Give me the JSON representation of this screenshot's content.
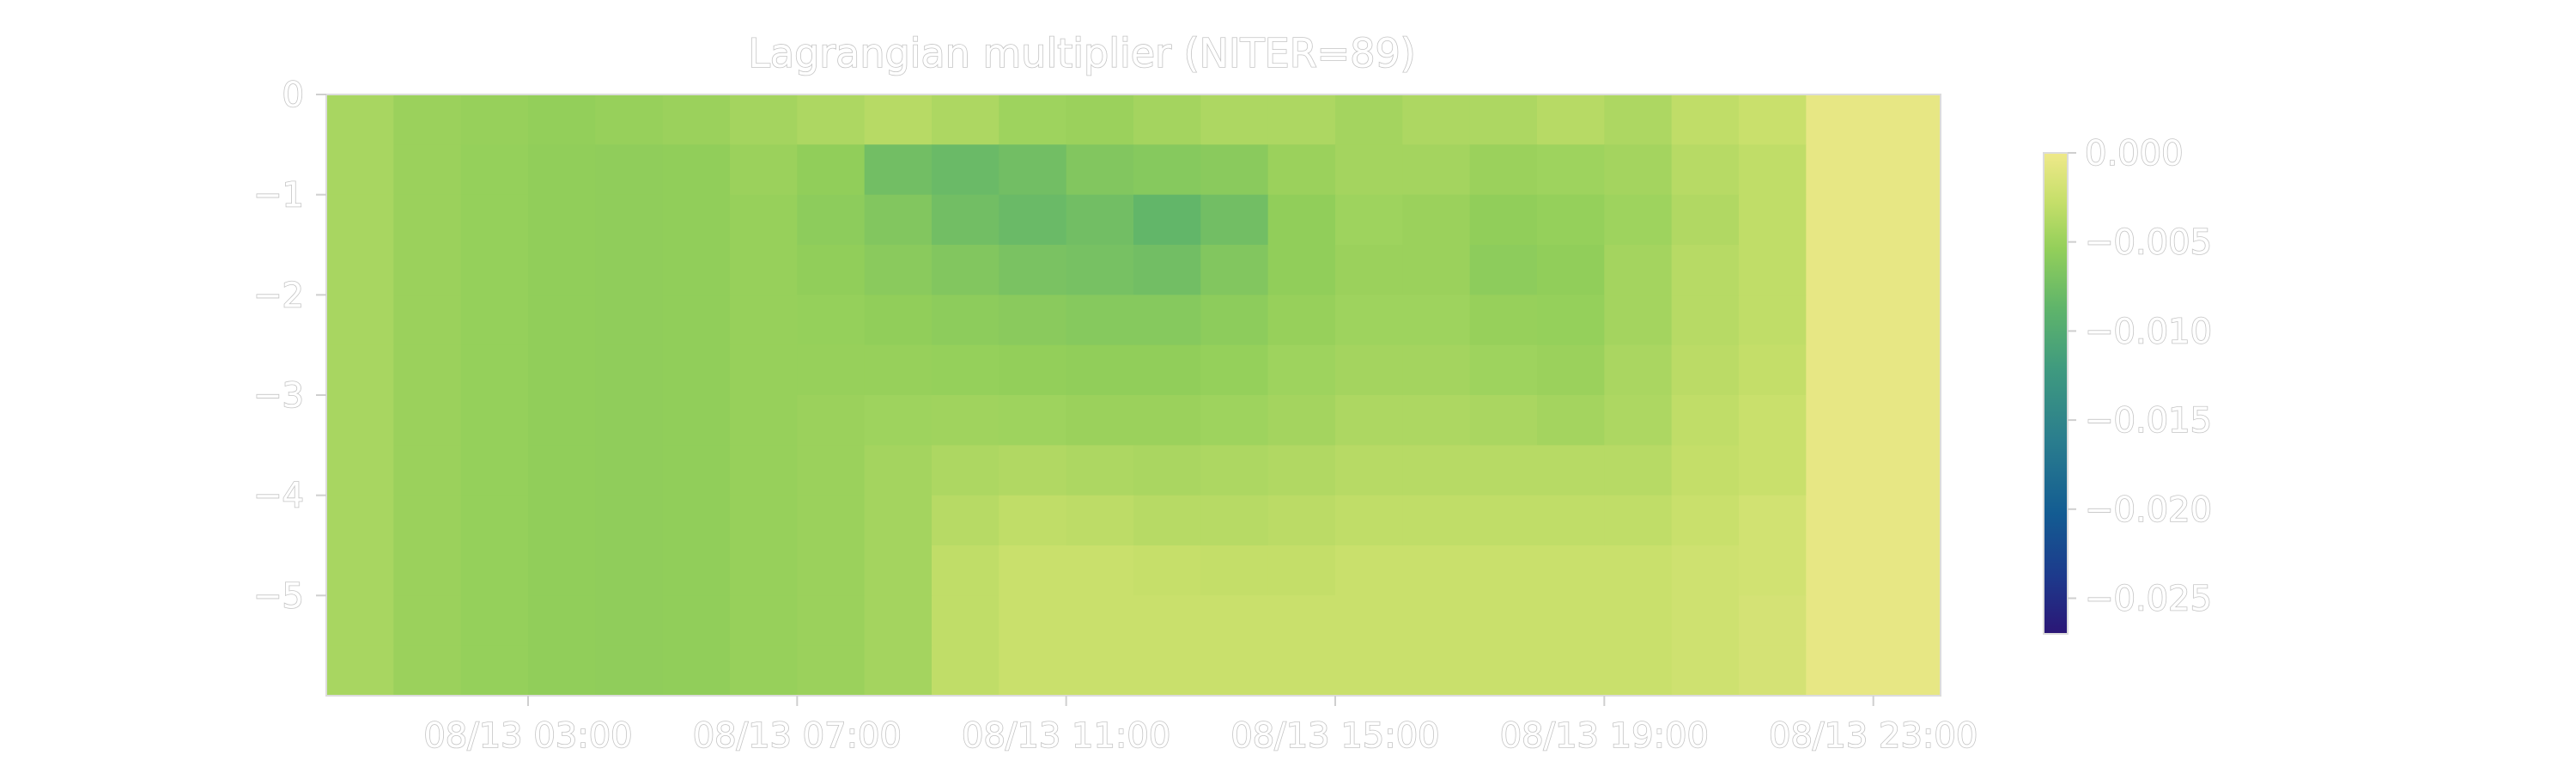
{
  "chart_data": {
    "type": "heatmap",
    "title": "Lagrangian multiplier (NITER=89)",
    "xlabel": "",
    "ylabel": "",
    "x_ticks": [
      "08/13 03:00",
      "08/13 07:00",
      "08/13 11:00",
      "08/13 15:00",
      "08/13 19:00",
      "08/13 23:00"
    ],
    "x_range": [
      "08/13 00:00",
      "08/14 00:00"
    ],
    "y_ticks": [
      "0",
      "−1",
      "−2",
      "−3",
      "−4",
      "−5"
    ],
    "y_tick_values": [
      0,
      -1,
      -2,
      -3,
      -4,
      -5
    ],
    "ylim": [
      -6,
      0
    ],
    "colorbar": {
      "ticks": [
        "0.000",
        "−0.005",
        "−0.010",
        "−0.015",
        "−0.020",
        "−0.025"
      ],
      "tick_values": [
        0,
        -0.005,
        -0.01,
        -0.015,
        -0.02,
        -0.025
      ],
      "range": [
        -0.027,
        0.0
      ],
      "colormap": "yellow-green-blue (haline-like)"
    },
    "grid": false,
    "depth_rows": [
      -0.25,
      -0.75,
      -1.25,
      -1.75,
      -2.25,
      -2.75,
      -3.25,
      -3.75,
      -4.25,
      -4.75,
      -5.25,
      -5.75
    ],
    "values": [
      [
        -0.0043,
        -0.005,
        -0.0052,
        -0.0054,
        -0.0052,
        -0.005,
        -0.0045,
        -0.004,
        -0.0035,
        -0.004,
        -0.0048,
        -0.005,
        -0.0045,
        -0.004,
        -0.004,
        -0.0045,
        -0.004,
        -0.004,
        -0.0035,
        -0.004,
        -0.003,
        -0.0025,
        -0.0005,
        -0.0005
      ],
      [
        -0.0043,
        -0.005,
        -0.0053,
        -0.0055,
        -0.0056,
        -0.0055,
        -0.005,
        -0.0055,
        -0.0075,
        -0.008,
        -0.0075,
        -0.0065,
        -0.0062,
        -0.006,
        -0.005,
        -0.0045,
        -0.0045,
        -0.005,
        -0.0048,
        -0.0045,
        -0.0035,
        -0.003,
        -0.0005,
        -0.0005
      ],
      [
        -0.0043,
        -0.005,
        -0.0053,
        -0.0055,
        -0.0056,
        -0.0055,
        -0.0052,
        -0.0058,
        -0.0065,
        -0.0075,
        -0.008,
        -0.0075,
        -0.0085,
        -0.0075,
        -0.0055,
        -0.0048,
        -0.005,
        -0.0055,
        -0.0053,
        -0.0048,
        -0.0038,
        -0.003,
        -0.0005,
        -0.0005
      ],
      [
        -0.0043,
        -0.005,
        -0.0053,
        -0.0055,
        -0.0056,
        -0.0055,
        -0.0052,
        -0.0055,
        -0.006,
        -0.0065,
        -0.007,
        -0.0072,
        -0.0075,
        -0.0065,
        -0.0055,
        -0.005,
        -0.005,
        -0.0058,
        -0.0055,
        -0.0045,
        -0.0035,
        -0.003,
        -0.0005,
        -0.0005
      ],
      [
        -0.0043,
        -0.005,
        -0.0053,
        -0.0055,
        -0.0056,
        -0.0055,
        -0.0052,
        -0.0053,
        -0.0055,
        -0.0058,
        -0.006,
        -0.0062,
        -0.0062,
        -0.0058,
        -0.0052,
        -0.0048,
        -0.0048,
        -0.0052,
        -0.0053,
        -0.0045,
        -0.0035,
        -0.003,
        -0.0005,
        -0.0005
      ],
      [
        -0.0043,
        -0.005,
        -0.0053,
        -0.0055,
        -0.0056,
        -0.0055,
        -0.0052,
        -0.0052,
        -0.0052,
        -0.0053,
        -0.0054,
        -0.0055,
        -0.0055,
        -0.0053,
        -0.0048,
        -0.0045,
        -0.0045,
        -0.0048,
        -0.005,
        -0.0042,
        -0.0033,
        -0.0028,
        -0.0005,
        -0.0005
      ],
      [
        -0.0043,
        -0.005,
        -0.0053,
        -0.0055,
        -0.0056,
        -0.0055,
        -0.0052,
        -0.005,
        -0.0048,
        -0.0047,
        -0.0048,
        -0.005,
        -0.005,
        -0.0048,
        -0.0045,
        -0.004,
        -0.004,
        -0.0042,
        -0.0045,
        -0.004,
        -0.003,
        -0.0025,
        -0.0005,
        -0.0005
      ],
      [
        -0.0043,
        -0.005,
        -0.0053,
        -0.0055,
        -0.0056,
        -0.0055,
        -0.0052,
        -0.005,
        -0.0045,
        -0.004,
        -0.0038,
        -0.004,
        -0.0042,
        -0.004,
        -0.0038,
        -0.0035,
        -0.0035,
        -0.0035,
        -0.0035,
        -0.0035,
        -0.0028,
        -0.0025,
        -0.0005,
        -0.0005
      ],
      [
        -0.0043,
        -0.005,
        -0.0053,
        -0.0055,
        -0.0056,
        -0.0055,
        -0.0052,
        -0.005,
        -0.0045,
        -0.0035,
        -0.003,
        -0.0032,
        -0.0035,
        -0.0035,
        -0.0033,
        -0.003,
        -0.003,
        -0.003,
        -0.003,
        -0.003,
        -0.0025,
        -0.002,
        -0.0005,
        -0.0005
      ],
      [
        -0.0043,
        -0.005,
        -0.0053,
        -0.0055,
        -0.0056,
        -0.0055,
        -0.0052,
        -0.005,
        -0.0045,
        -0.003,
        -0.0025,
        -0.0025,
        -0.0027,
        -0.0028,
        -0.0028,
        -0.0025,
        -0.0025,
        -0.0025,
        -0.0025,
        -0.0025,
        -0.0022,
        -0.002,
        -0.0005,
        -0.0005
      ],
      [
        -0.0043,
        -0.005,
        -0.0053,
        -0.0055,
        -0.0056,
        -0.0055,
        -0.0052,
        -0.005,
        -0.0045,
        -0.003,
        -0.0025,
        -0.0025,
        -0.0025,
        -0.0025,
        -0.0025,
        -0.0025,
        -0.0025,
        -0.0025,
        -0.0025,
        -0.0025,
        -0.0022,
        -0.0018,
        -0.0005,
        -0.0005
      ],
      [
        -0.0043,
        -0.005,
        -0.0053,
        -0.0055,
        -0.0056,
        -0.0055,
        -0.0052,
        -0.005,
        -0.0045,
        -0.003,
        -0.0025,
        -0.0025,
        -0.0025,
        -0.0025,
        -0.0025,
        -0.0025,
        -0.0025,
        -0.0025,
        -0.0025,
        -0.0025,
        -0.0022,
        -0.0018,
        -0.0005,
        -0.0005
      ]
    ],
    "time_columns": [
      "00:30",
      "01:30",
      "02:30",
      "03:30",
      "04:30",
      "05:30",
      "06:30",
      "07:30",
      "08:30",
      "09:30",
      "10:30",
      "11:30",
      "12:30",
      "13:30",
      "14:30",
      "15:30",
      "16:30",
      "17:30",
      "18:30",
      "19:30",
      "20:30",
      "21:30",
      "22:30",
      "23:30"
    ]
  }
}
